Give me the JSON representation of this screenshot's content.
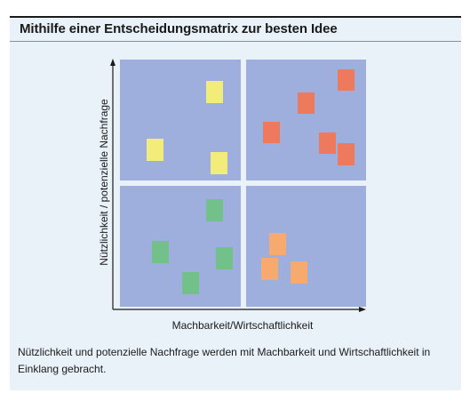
{
  "title": "Mithilfe einer Entscheidungsmatrix zur besten Idee",
  "axes": {
    "y_label": "Nützlichkeit / potenzielle Nachfrage",
    "x_label": "Machbarkeit/Wirtschaftlichkeit"
  },
  "caption": "Nützlichkeit und potenzielle Nachfrage werden mit Machbarkeit und Wirtschaftlichkeit in Einklang gebracht.",
  "colors": {
    "panel_background": "#e9f2f9",
    "quadrant_fill": "#9eaedd",
    "axis": "#1a1a1a",
    "yellow_note": "#f2ec7a",
    "red_note": "#ee7a5e",
    "green_note": "#72c08a",
    "orange_note": "#f7aa6e"
  },
  "quadrants": [
    {
      "id": "top-left",
      "note_color": "yellow",
      "note_count": 3
    },
    {
      "id": "top-right",
      "note_color": "red",
      "note_count": 5
    },
    {
      "id": "bottom-left",
      "note_color": "green",
      "note_count": 4
    },
    {
      "id": "bottom-right",
      "note_color": "orange",
      "note_count": 3
    }
  ]
}
